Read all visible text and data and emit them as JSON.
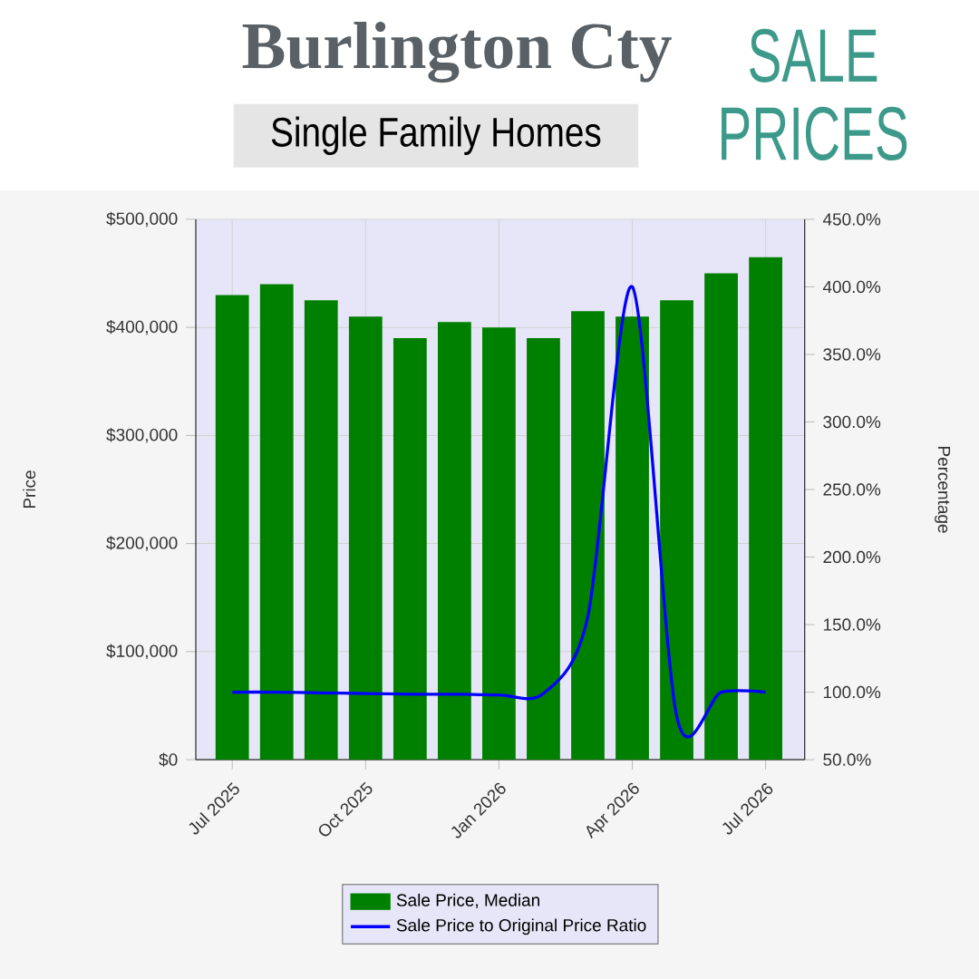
{
  "chart_data": {
    "type": "bar",
    "title": "Burlington Cty",
    "subtitle": "Single Family Homes",
    "annotations": [
      "SALE PRICES"
    ],
    "categories": [
      "Jul 2025",
      null,
      null,
      "Oct 2025",
      null,
      null,
      "Jan 2026",
      null,
      null,
      "Apr 2026",
      null,
      null,
      "Jul 2026"
    ],
    "series": [
      {
        "name": "Sale Price, Median",
        "color": "#008000",
        "values": [
          430000,
          440000,
          425000,
          410000,
          390000,
          405000,
          400000,
          390000,
          415000,
          410000,
          425000,
          450000,
          465000
        ]
      },
      {
        "name": "Sale Price to Original Price Ratio",
        "type": "line",
        "axis": "y2",
        "color": "#0000ff",
        "values": [
          100,
          100,
          99.5,
          99,
          98.5,
          98.5,
          98,
          99,
          156,
          400,
          82,
          100,
          100
        ]
      }
    ],
    "ylabel": "Price",
    "y2label": "Percentage",
    "ylim": [
      0,
      500000
    ],
    "yticks": [
      {
        "value": 0,
        "label": "$0"
      },
      {
        "value": 100000,
        "label": "$100,000"
      },
      {
        "value": 200000,
        "label": "$200,000"
      },
      {
        "value": 300000,
        "label": "$300,000"
      },
      {
        "value": 400000,
        "label": "$400,000"
      },
      {
        "value": 500000,
        "label": "$500,000"
      }
    ],
    "y2lim": [
      50,
      450
    ],
    "y2ticks": [
      {
        "value": 50,
        "label": "50.0%"
      },
      {
        "value": 100,
        "label": "100.0%"
      },
      {
        "value": 150,
        "label": "150.0%"
      },
      {
        "value": 200,
        "label": "200.0%"
      },
      {
        "value": 250,
        "label": "250.0%"
      },
      {
        "value": 300,
        "label": "300.0%"
      },
      {
        "value": 350,
        "label": "350.0%"
      },
      {
        "value": 400,
        "label": "400.0%"
      },
      {
        "value": 450,
        "label": "450.0%"
      }
    ],
    "grid": true,
    "legend": "bottom"
  }
}
